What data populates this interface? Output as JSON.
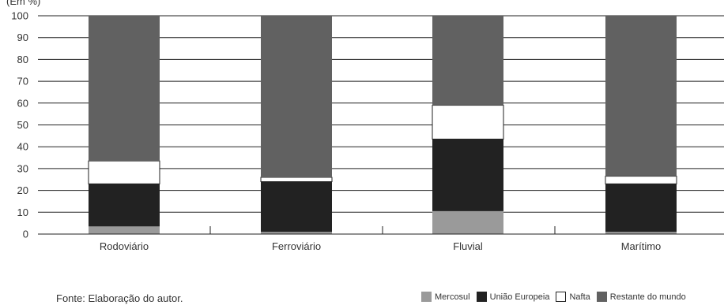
{
  "unit_label": "(Em %)",
  "source": "Fonte: Elaboração do autor.",
  "chart_data": {
    "type": "bar",
    "stacked": true,
    "categories": [
      "Rodoviário",
      "Ferroviário",
      "Fluvial",
      "Marítimo"
    ],
    "series": [
      {
        "name": "Mercosul",
        "color": "#9a9a9a",
        "values": [
          3.5,
          1,
          10.5,
          1
        ]
      },
      {
        "name": "União Europeia",
        "color": "#222222",
        "values": [
          19.5,
          23,
          33,
          22
        ]
      },
      {
        "name": "Nafta",
        "color": "#ffffff",
        "values": [
          10.5,
          2,
          15.5,
          3.5
        ]
      },
      {
        "name": "Restante do mundo",
        "color": "#616161",
        "values": [
          66.5,
          74,
          41,
          73.5
        ]
      }
    ],
    "yticks": [
      0,
      10,
      20,
      30,
      40,
      50,
      60,
      70,
      80,
      90,
      100
    ],
    "ylim": [
      0,
      100
    ],
    "grid": true,
    "legend_position": "bottom-right"
  }
}
